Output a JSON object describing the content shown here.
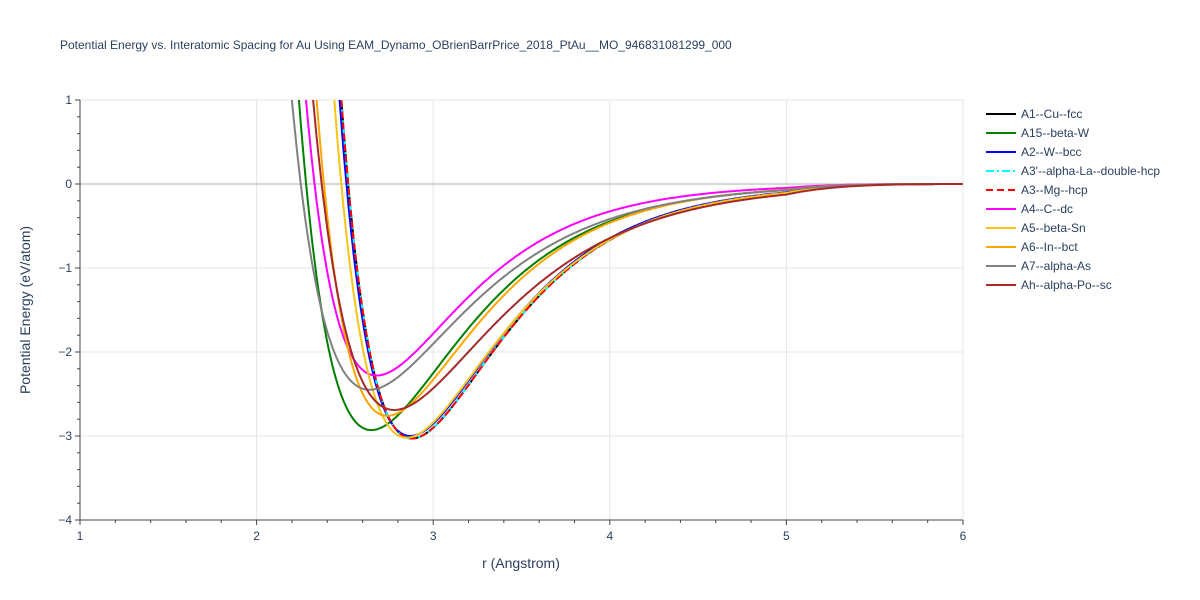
{
  "chart_data": {
    "type": "line",
    "title": "Potential Energy vs. Interatomic Spacing for Au Using EAM_Dynamo_OBrienBarrPrice_2018_PtAu__MO_946831081299_000",
    "xlabel": "r (Angstrom)",
    "ylabel": "Potential Energy (eV/atom)",
    "xlim": [
      1,
      6
    ],
    "ylim": [
      -4,
      1
    ],
    "xticks": [
      1,
      2,
      3,
      4,
      5,
      6
    ],
    "yticks": [
      -4,
      -3,
      -2,
      -1,
      0,
      1
    ],
    "xtick_labels": [
      "1",
      "2",
      "3",
      "4",
      "5",
      "6"
    ],
    "ytick_labels": [
      "−4",
      "−3",
      "−2",
      "−1",
      "0",
      "1"
    ],
    "grid": true,
    "legend_position": "right",
    "series": [
      {
        "name": "A1--Cu--fcc",
        "color": "#000000",
        "dash": "solid",
        "a": 2.88,
        "d": 3.03,
        "ra": 2.48
      },
      {
        "name": "A15--beta-W",
        "color": "#008000",
        "dash": "solid",
        "a": 2.65,
        "d": 2.93,
        "ra": 2.24
      },
      {
        "name": "A2--W--bcc",
        "color": "#0000ff",
        "dash": "solid",
        "a": 2.87,
        "d": 3.0,
        "ra": 2.47
      },
      {
        "name": "A3'--alpha-La--double-hcp",
        "color": "#00ffff",
        "dash": "dashdot",
        "a": 2.88,
        "d": 3.03,
        "ra": 2.48
      },
      {
        "name": "A3--Mg--hcp",
        "color": "#ff0000",
        "dash": "dash",
        "a": 2.88,
        "d": 3.03,
        "ra": 2.48
      },
      {
        "name": "A4--C--dc",
        "color": "#ff00ff",
        "dash": "solid",
        "a": 2.68,
        "d": 2.28,
        "ra": 2.28
      },
      {
        "name": "A5--beta-Sn",
        "color": "#f5c518",
        "dash": "solid",
        "a": 2.85,
        "d": 3.02,
        "ra": 2.44
      },
      {
        "name": "A6--In--bct",
        "color": "#ffa500",
        "dash": "solid",
        "a": 2.74,
        "d": 2.76,
        "ra": 2.34
      },
      {
        "name": "A7--alpha-As",
        "color": "#808080",
        "dash": "solid",
        "a": 2.64,
        "d": 2.45,
        "ra": 2.2
      },
      {
        "name": "Ah--alpha-Po--sc",
        "color": "#a52a2a",
        "dash": "solid",
        "a": 2.78,
        "d": 2.69,
        "ra": 2.32
      }
    ]
  }
}
